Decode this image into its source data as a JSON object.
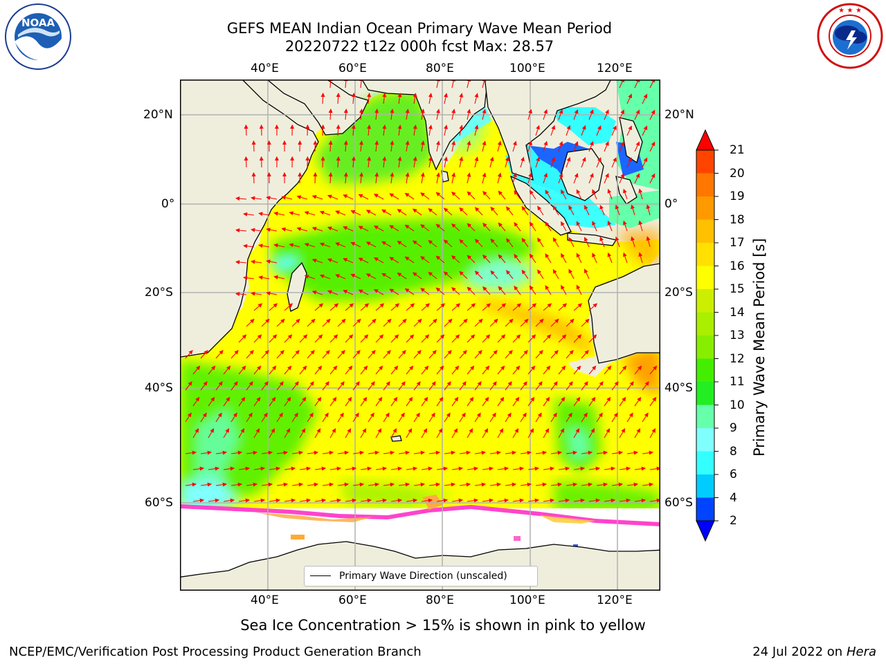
{
  "header": {
    "title_line1": "GEFS MEAN Indian Ocean Primary Wave Mean Period",
    "title_line2": "20220722 t12z 000h fcst   Max: 28.57"
  },
  "logos": {
    "noaa_text": "NOAA",
    "noaa_ring_text": "NATIONAL OCEANIC AND ATMOSPHERIC ADMINISTRATION · U.S. DEPARTMENT OF COMMERCE",
    "nws_ring_text": "NATIONAL WEATHER SERVICE"
  },
  "map": {
    "lon_ticks": [
      "40°E",
      "60°E",
      "80°E",
      "100°E",
      "120°E"
    ],
    "lat_ticks_left": [
      "20°N",
      "0°",
      "20°S",
      "40°S",
      "60°S"
    ],
    "lat_ticks_right": [
      "20°N",
      "0°",
      "20°S",
      "40°S",
      "60°S"
    ],
    "lon_range": [
      20,
      130
    ],
    "lat_range": [
      -76,
      28
    ],
    "gridlines": true,
    "legend_label": "Primary Wave Direction (unscaled)",
    "arrow_color": "#ff0000",
    "land_color": "#efeedd"
  },
  "colorbar": {
    "label": "Primary Wave Mean Period [s]",
    "tick_labels": [
      "2",
      "4",
      "6",
      "8",
      "9",
      "10",
      "11",
      "12",
      "13",
      "14",
      "15",
      "16",
      "17",
      "18",
      "19",
      "20",
      "21"
    ],
    "colors": [
      "#0044ff",
      "#00ccff",
      "#33ffff",
      "#80ffff",
      "#66ffaa",
      "#22ee22",
      "#44ee00",
      "#88ee00",
      "#aaee00",
      "#ccee00",
      "#ffff00",
      "#ffe000",
      "#ffc000",
      "#ff9900",
      "#ff7700",
      "#ff4400",
      "#ff2200"
    ],
    "under_color": "#0000ff",
    "over_color": "#ff0000"
  },
  "footer": {
    "ice_note": "Sea Ice Concentration > 15% is shown in pink to yellow",
    "branch": "NCEP/EMC/Verification Post Processing Product Generation Branch",
    "date_prefix": "24 Jul 2022 on ",
    "date_machine": "Hera"
  }
}
